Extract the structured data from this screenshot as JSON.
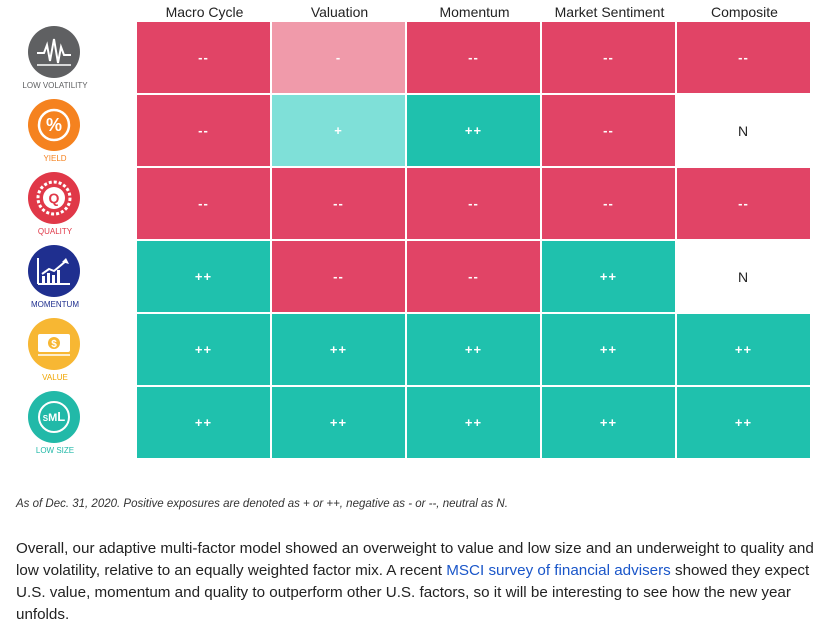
{
  "columns": [
    "Macro Cycle",
    "Valuation",
    "Momentum",
    "Market Sentiment",
    "Composite"
  ],
  "colors": {
    "red": "#e14466",
    "pink": "#f09aaa",
    "teal": "#1fc1ad",
    "lightteal": "#7fe0d8",
    "white": "#ffffff"
  },
  "factors": [
    {
      "label": "LOW VOLATILITY",
      "icon": "low-volatility-icon",
      "circle": "#5f6062",
      "label_color": "#5f6062",
      "cells": [
        {
          "v": "--",
          "c": "red"
        },
        {
          "v": "-",
          "c": "pink"
        },
        {
          "v": "--",
          "c": "red"
        },
        {
          "v": "--",
          "c": "red"
        },
        {
          "v": "--",
          "c": "red"
        }
      ]
    },
    {
      "label": "YIELD",
      "icon": "percent-icon",
      "circle": "#f5821f",
      "label_color": "#f5821f",
      "cells": [
        {
          "v": "--",
          "c": "red"
        },
        {
          "v": "+",
          "c": "lightteal"
        },
        {
          "v": "++",
          "c": "teal"
        },
        {
          "v": "--",
          "c": "red"
        },
        {
          "v": "N",
          "c": "white"
        }
      ]
    },
    {
      "label": "QUALITY",
      "icon": "quality-badge-icon",
      "circle": "#e03848",
      "label_color": "#e03848",
      "cells": [
        {
          "v": "--",
          "c": "red"
        },
        {
          "v": "--",
          "c": "red"
        },
        {
          "v": "--",
          "c": "red"
        },
        {
          "v": "--",
          "c": "red"
        },
        {
          "v": "--",
          "c": "red"
        }
      ]
    },
    {
      "label": "MOMENTUM",
      "icon": "trend-chart-icon",
      "circle": "#1f2f8f",
      "label_color": "#1f2f8f",
      "cells": [
        {
          "v": "++",
          "c": "teal"
        },
        {
          "v": "--",
          "c": "red"
        },
        {
          "v": "--",
          "c": "red"
        },
        {
          "v": "++",
          "c": "teal"
        },
        {
          "v": "N",
          "c": "white"
        }
      ]
    },
    {
      "label": "VALUE",
      "icon": "dollar-bill-icon",
      "circle": "#f7b733",
      "label_color": "#f0a500",
      "cells": [
        {
          "v": "++",
          "c": "teal"
        },
        {
          "v": "++",
          "c": "teal"
        },
        {
          "v": "++",
          "c": "teal"
        },
        {
          "v": "++",
          "c": "teal"
        },
        {
          "v": "++",
          "c": "teal"
        }
      ]
    },
    {
      "label": "LOW SIZE",
      "icon": "sml-icon",
      "circle": "#22b9a8",
      "label_color": "#22b9a8",
      "cells": [
        {
          "v": "++",
          "c": "teal"
        },
        {
          "v": "++",
          "c": "teal"
        },
        {
          "v": "++",
          "c": "teal"
        },
        {
          "v": "++",
          "c": "teal"
        },
        {
          "v": "++",
          "c": "teal"
        }
      ]
    }
  ],
  "note": "As of Dec. 31, 2020. Positive exposures are denoted as + or ++, negative as - or --, neutral as N.",
  "paragraph": {
    "before": "Overall, our adaptive multi-factor model showed an overweight to value and low size and an underweight to quality and low volatility, relative to an equally weighted factor mix. A recent ",
    "link": "MSCI survey of financial advisers",
    "after": " showed they expect U.S. value, momentum and quality to outperform other U.S. factors, so it will be interesting to see how the new year unfolds."
  }
}
